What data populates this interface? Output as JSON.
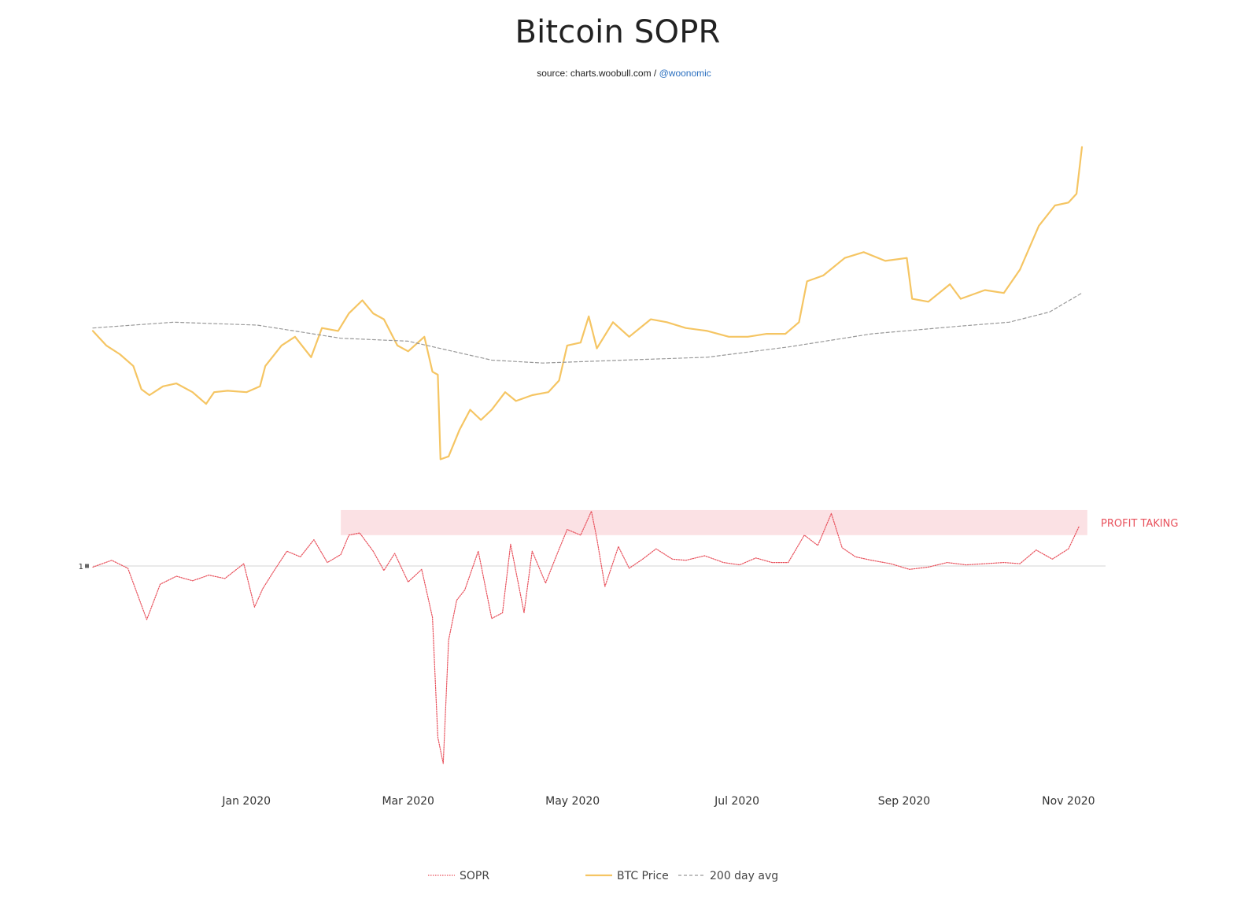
{
  "title": "Bitcoin SOPR",
  "subtitle": {
    "source": "source: charts.woobull.com / ",
    "handle": "@woonomic"
  },
  "chart_data": {
    "type": "line",
    "title": "Bitcoin SOPR",
    "x_tick_labels": [
      "Jan 2020",
      "Mar 2020",
      "May 2020",
      "Jul 2020",
      "Sep 2020",
      "Nov 2020"
    ],
    "x_tick_dates": [
      "2020-01-01",
      "2020-03-01",
      "2020-05-01",
      "2020-07-01",
      "2020-09-01",
      "2020-11-01"
    ],
    "x_range": [
      "2019-11-05",
      "2020-11-06"
    ],
    "sopr_axis": {
      "tick_value": 1,
      "tick_label": "1",
      "range": [
        0.91,
        1.03
      ]
    },
    "price_axis": {
      "range": [
        3700,
        16000
      ],
      "visible": false
    },
    "grid": false,
    "legend_position": "bottom-center",
    "annotation": {
      "label": "PROFIT TAKING",
      "sopr_from": 1.0135,
      "sopr_to": 1.0245,
      "start_date": "2020-02-05",
      "end_date": "2020-11-08"
    },
    "series": [
      {
        "name": "SOPR",
        "axis": "sopr",
        "style": "dotted",
        "color": "#e8505b",
        "points": [
          [
            "2019-11-05",
            0.9995
          ],
          [
            "2019-11-12",
            1.0025
          ],
          [
            "2019-11-18",
            0.999
          ],
          [
            "2019-11-25",
            0.9765
          ],
          [
            "2019-11-30",
            0.992
          ],
          [
            "2019-12-06",
            0.9955
          ],
          [
            "2019-12-12",
            0.9935
          ],
          [
            "2019-12-18",
            0.996
          ],
          [
            "2019-12-24",
            0.9945
          ],
          [
            "2019-12-31",
            1.001
          ],
          [
            "2020-01-04",
            0.982
          ],
          [
            "2020-01-07",
            0.99
          ],
          [
            "2020-01-11",
            0.9975
          ],
          [
            "2020-01-16",
            1.0065
          ],
          [
            "2020-01-21",
            1.004
          ],
          [
            "2020-01-26",
            1.0115
          ],
          [
            "2020-01-31",
            1.0015
          ],
          [
            "2020-02-05",
            1.005
          ],
          [
            "2020-02-08",
            1.0135
          ],
          [
            "2020-02-12",
            1.0145
          ],
          [
            "2020-02-17",
            1.0065
          ],
          [
            "2020-02-21",
            0.998
          ],
          [
            "2020-02-25",
            1.0055
          ],
          [
            "2020-03-01",
            0.993
          ],
          [
            "2020-03-06",
            0.9985
          ],
          [
            "2020-03-10",
            0.9775
          ],
          [
            "2020-03-12",
            0.925
          ],
          [
            "2020-03-14",
            0.9135
          ],
          [
            "2020-03-16",
            0.9675
          ],
          [
            "2020-03-19",
            0.985
          ],
          [
            "2020-03-22",
            0.9895
          ],
          [
            "2020-03-27",
            1.0065
          ],
          [
            "2020-04-01",
            0.977
          ],
          [
            "2020-04-05",
            0.9795
          ],
          [
            "2020-04-08",
            1.0095
          ],
          [
            "2020-04-13",
            0.9795
          ],
          [
            "2020-04-16",
            1.0065
          ],
          [
            "2020-04-21",
            0.9925
          ],
          [
            "2020-04-25",
            1.0045
          ],
          [
            "2020-04-29",
            1.016
          ],
          [
            "2020-05-04",
            1.0135
          ],
          [
            "2020-05-08",
            1.024
          ],
          [
            "2020-05-10",
            1.012
          ],
          [
            "2020-05-13",
            0.991
          ],
          [
            "2020-05-18",
            1.0085
          ],
          [
            "2020-05-22",
            0.999
          ],
          [
            "2020-05-27",
            1.003
          ],
          [
            "2020-06-01",
            1.0075
          ],
          [
            "2020-06-07",
            1.003
          ],
          [
            "2020-06-12",
            1.0025
          ],
          [
            "2020-06-19",
            1.0045
          ],
          [
            "2020-06-26",
            1.0015
          ],
          [
            "2020-07-02",
            1.0005
          ],
          [
            "2020-07-08",
            1.0035
          ],
          [
            "2020-07-14",
            1.0015
          ],
          [
            "2020-07-20",
            1.0015
          ],
          [
            "2020-07-26",
            1.0135
          ],
          [
            "2020-07-31",
            1.009
          ],
          [
            "2020-08-05",
            1.023
          ],
          [
            "2020-08-09",
            1.008
          ],
          [
            "2020-08-14",
            1.004
          ],
          [
            "2020-08-20",
            1.0025
          ],
          [
            "2020-08-27",
            1.001
          ],
          [
            "2020-09-03",
            0.9985
          ],
          [
            "2020-09-10",
            0.9995
          ],
          [
            "2020-09-17",
            1.0015
          ],
          [
            "2020-09-24",
            1.0005
          ],
          [
            "2020-10-01",
            1.001
          ],
          [
            "2020-10-08",
            1.0015
          ],
          [
            "2020-10-14",
            1.001
          ],
          [
            "2020-10-20",
            1.007
          ],
          [
            "2020-10-26",
            1.003
          ],
          [
            "2020-11-01",
            1.0075
          ],
          [
            "2020-11-05",
            1.0175
          ]
        ]
      },
      {
        "name": "BTC Price",
        "axis": "price",
        "style": "solid",
        "color": "#f5c563",
        "points": [
          [
            "2019-11-05",
            9300
          ],
          [
            "2019-11-10",
            8800
          ],
          [
            "2019-11-15",
            8500
          ],
          [
            "2019-11-20",
            8100
          ],
          [
            "2019-11-23",
            7300
          ],
          [
            "2019-11-26",
            7100
          ],
          [
            "2019-12-01",
            7400
          ],
          [
            "2019-12-06",
            7500
          ],
          [
            "2019-12-12",
            7200
          ],
          [
            "2019-12-17",
            6800
          ],
          [
            "2019-12-20",
            7200
          ],
          [
            "2019-12-25",
            7250
          ],
          [
            "2020-01-01",
            7200
          ],
          [
            "2020-01-06",
            7400
          ],
          [
            "2020-01-08",
            8100
          ],
          [
            "2020-01-14",
            8800
          ],
          [
            "2020-01-19",
            9100
          ],
          [
            "2020-01-25",
            8400
          ],
          [
            "2020-01-29",
            9400
          ],
          [
            "2020-02-04",
            9300
          ],
          [
            "2020-02-08",
            9900
          ],
          [
            "2020-02-13",
            10350
          ],
          [
            "2020-02-17",
            9900
          ],
          [
            "2020-02-21",
            9700
          ],
          [
            "2020-02-26",
            8800
          ],
          [
            "2020-03-01",
            8600
          ],
          [
            "2020-03-07",
            9100
          ],
          [
            "2020-03-10",
            7900
          ],
          [
            "2020-03-12",
            7800
          ],
          [
            "2020-03-13",
            4900
          ],
          [
            "2020-03-16",
            5000
          ],
          [
            "2020-03-20",
            5900
          ],
          [
            "2020-03-24",
            6600
          ],
          [
            "2020-03-28",
            6250
          ],
          [
            "2020-04-01",
            6600
          ],
          [
            "2020-04-06",
            7200
          ],
          [
            "2020-04-10",
            6900
          ],
          [
            "2020-04-16",
            7100
          ],
          [
            "2020-04-22",
            7200
          ],
          [
            "2020-04-26",
            7600
          ],
          [
            "2020-04-29",
            8800
          ],
          [
            "2020-05-04",
            8900
          ],
          [
            "2020-05-07",
            9800
          ],
          [
            "2020-05-10",
            8700
          ],
          [
            "2020-05-16",
            9600
          ],
          [
            "2020-05-22",
            9100
          ],
          [
            "2020-05-30",
            9700
          ],
          [
            "2020-06-05",
            9600
          ],
          [
            "2020-06-12",
            9400
          ],
          [
            "2020-06-20",
            9300
          ],
          [
            "2020-06-28",
            9100
          ],
          [
            "2020-07-05",
            9100
          ],
          [
            "2020-07-12",
            9200
          ],
          [
            "2020-07-19",
            9200
          ],
          [
            "2020-07-24",
            9600
          ],
          [
            "2020-07-27",
            11000
          ],
          [
            "2020-08-02",
            11200
          ],
          [
            "2020-08-10",
            11800
          ],
          [
            "2020-08-17",
            12000
          ],
          [
            "2020-08-25",
            11700
          ],
          [
            "2020-09-02",
            11800
          ],
          [
            "2020-09-04",
            10400
          ],
          [
            "2020-09-10",
            10300
          ],
          [
            "2020-09-18",
            10900
          ],
          [
            "2020-09-22",
            10400
          ],
          [
            "2020-10-01",
            10700
          ],
          [
            "2020-10-08",
            10600
          ],
          [
            "2020-10-14",
            11400
          ],
          [
            "2020-10-21",
            12900
          ],
          [
            "2020-10-27",
            13600
          ],
          [
            "2020-11-01",
            13700
          ],
          [
            "2020-11-04",
            14000
          ],
          [
            "2020-11-06",
            15600
          ]
        ]
      },
      {
        "name": "200 day avg",
        "axis": "price",
        "style": "dashed",
        "color": "#999999",
        "points": [
          [
            "2019-11-05",
            9400
          ],
          [
            "2019-12-05",
            9600
          ],
          [
            "2020-01-05",
            9500
          ],
          [
            "2020-02-05",
            9050
          ],
          [
            "2020-03-01",
            8950
          ],
          [
            "2020-04-01",
            8300
          ],
          [
            "2020-04-20",
            8200
          ],
          [
            "2020-05-20",
            8300
          ],
          [
            "2020-06-20",
            8400
          ],
          [
            "2020-07-20",
            8750
          ],
          [
            "2020-08-20",
            9200
          ],
          [
            "2020-09-20",
            9450
          ],
          [
            "2020-10-10",
            9600
          ],
          [
            "2020-10-25",
            9950
          ],
          [
            "2020-11-06",
            10600
          ]
        ]
      }
    ]
  }
}
